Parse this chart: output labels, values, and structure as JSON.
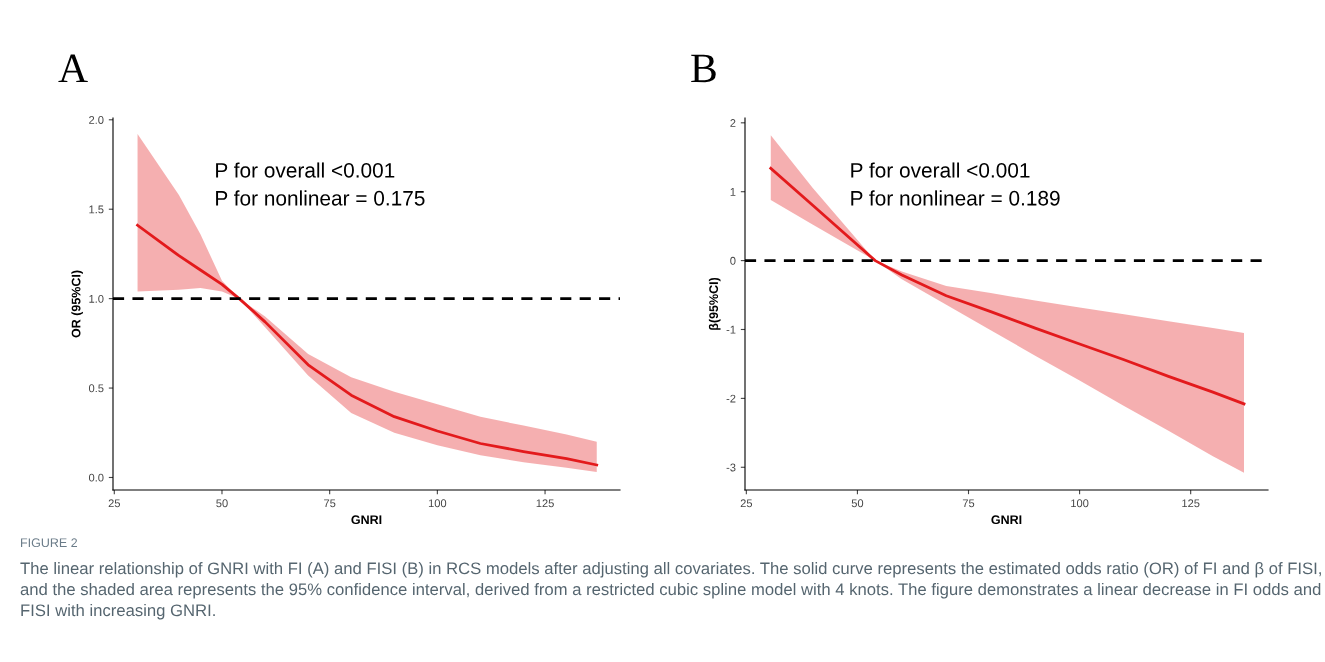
{
  "chart_data": [
    {
      "type": "line",
      "title": "A",
      "xlabel": "GNRI",
      "ylabel": "OR (95%CI)",
      "annotations": [
        "P for overall <0.001",
        "P for nonlinear = 0.175",
        "FIGURE 2",
        "The linear relationship of GNRI with FI (A) and FISI (B) in RCS models after adjusting all covariates. The solid curve represents the estimated odds ratio (OR) of FI and β of FISI, and the shaded area represents the 95% confidence interval, derived from a restricted cubic spline model with 4 knots. The figure demonstrates a linear decrease in FI odds and FISI with increasing GNRI."
      ],
      "x": [
        30.4,
        40,
        45,
        50,
        54,
        60,
        70,
        80,
        90,
        100,
        110,
        120,
        130,
        137
      ],
      "series": [
        {
          "color": "#e31a1c",
          "values": [
            1.41,
            1.24,
            1.16,
            1.08,
            1.0,
            0.87,
            0.63,
            0.46,
            0.34,
            0.26,
            0.19,
            0.145,
            0.105,
            0.07
          ],
          "lower": [
            1.04,
            1.05,
            1.06,
            1.04,
            1.0,
            0.84,
            0.57,
            0.36,
            0.25,
            0.18,
            0.125,
            0.085,
            0.055,
            0.03
          ],
          "upper": [
            1.92,
            1.58,
            1.36,
            1.1,
            1.0,
            0.9,
            0.69,
            0.56,
            0.48,
            0.41,
            0.34,
            0.29,
            0.24,
            0.2
          ]
        }
      ],
      "xlim": [
        24.7,
        142.4
      ],
      "ylim": [
        -0.07,
        2.01
      ],
      "xticks": [
        25,
        50,
        75,
        100,
        125
      ],
      "yticks": [
        {
          "value": 0,
          "label": "0.0"
        },
        {
          "value": 0.5,
          "label": "0.5"
        },
        {
          "value": 1,
          "label": "1.0"
        },
        {
          "value": 1.5,
          "label": "1.5"
        },
        {
          "value": 2,
          "label": "2.0"
        }
      ],
      "ref_lines": [
        {
          "axis": "y",
          "value": 1,
          "color": "#000000",
          "line_style": "dashed"
        }
      ],
      "grid": false,
      "legend": false,
      "marker": "none",
      "line_style": "solid"
    },
    {
      "type": "line",
      "title": "B",
      "xlabel": "GNRI",
      "ylabel": "β(95%CI)",
      "annotations": [
        "P for overall <0.001",
        "P for nonlinear = 0.189"
      ],
      "x": [
        30.5,
        40,
        54,
        60,
        70,
        80,
        90,
        100,
        110,
        120,
        130,
        137
      ],
      "series": [
        {
          "color": "#e31a1c",
          "values": [
            1.34,
            0.8,
            0.0,
            -0.21,
            -0.51,
            -0.74,
            -0.98,
            -1.21,
            -1.44,
            -1.68,
            -1.91,
            -2.08
          ],
          "lower": [
            0.88,
            0.52,
            0.0,
            -0.27,
            -0.64,
            -1.01,
            -1.38,
            -1.74,
            -2.11,
            -2.47,
            -2.84,
            -3.08
          ],
          "upper": [
            1.82,
            1.05,
            0.0,
            -0.16,
            -0.37,
            -0.47,
            -0.58,
            -0.68,
            -0.78,
            -0.88,
            -0.98,
            -1.05
          ]
        }
      ],
      "xlim": [
        24.7,
        142.4
      ],
      "ylim": [
        -3.33,
        2.07
      ],
      "xticks": [
        25,
        50,
        75,
        100,
        125
      ],
      "yticks": [
        -3,
        -2,
        -1,
        0,
        1,
        2
      ],
      "ref_lines": [
        {
          "axis": "y",
          "value": 0,
          "color": "#000000",
          "line_style": "dashed"
        }
      ],
      "grid": false,
      "legend": false,
      "marker": "none",
      "line_style": "solid"
    }
  ]
}
